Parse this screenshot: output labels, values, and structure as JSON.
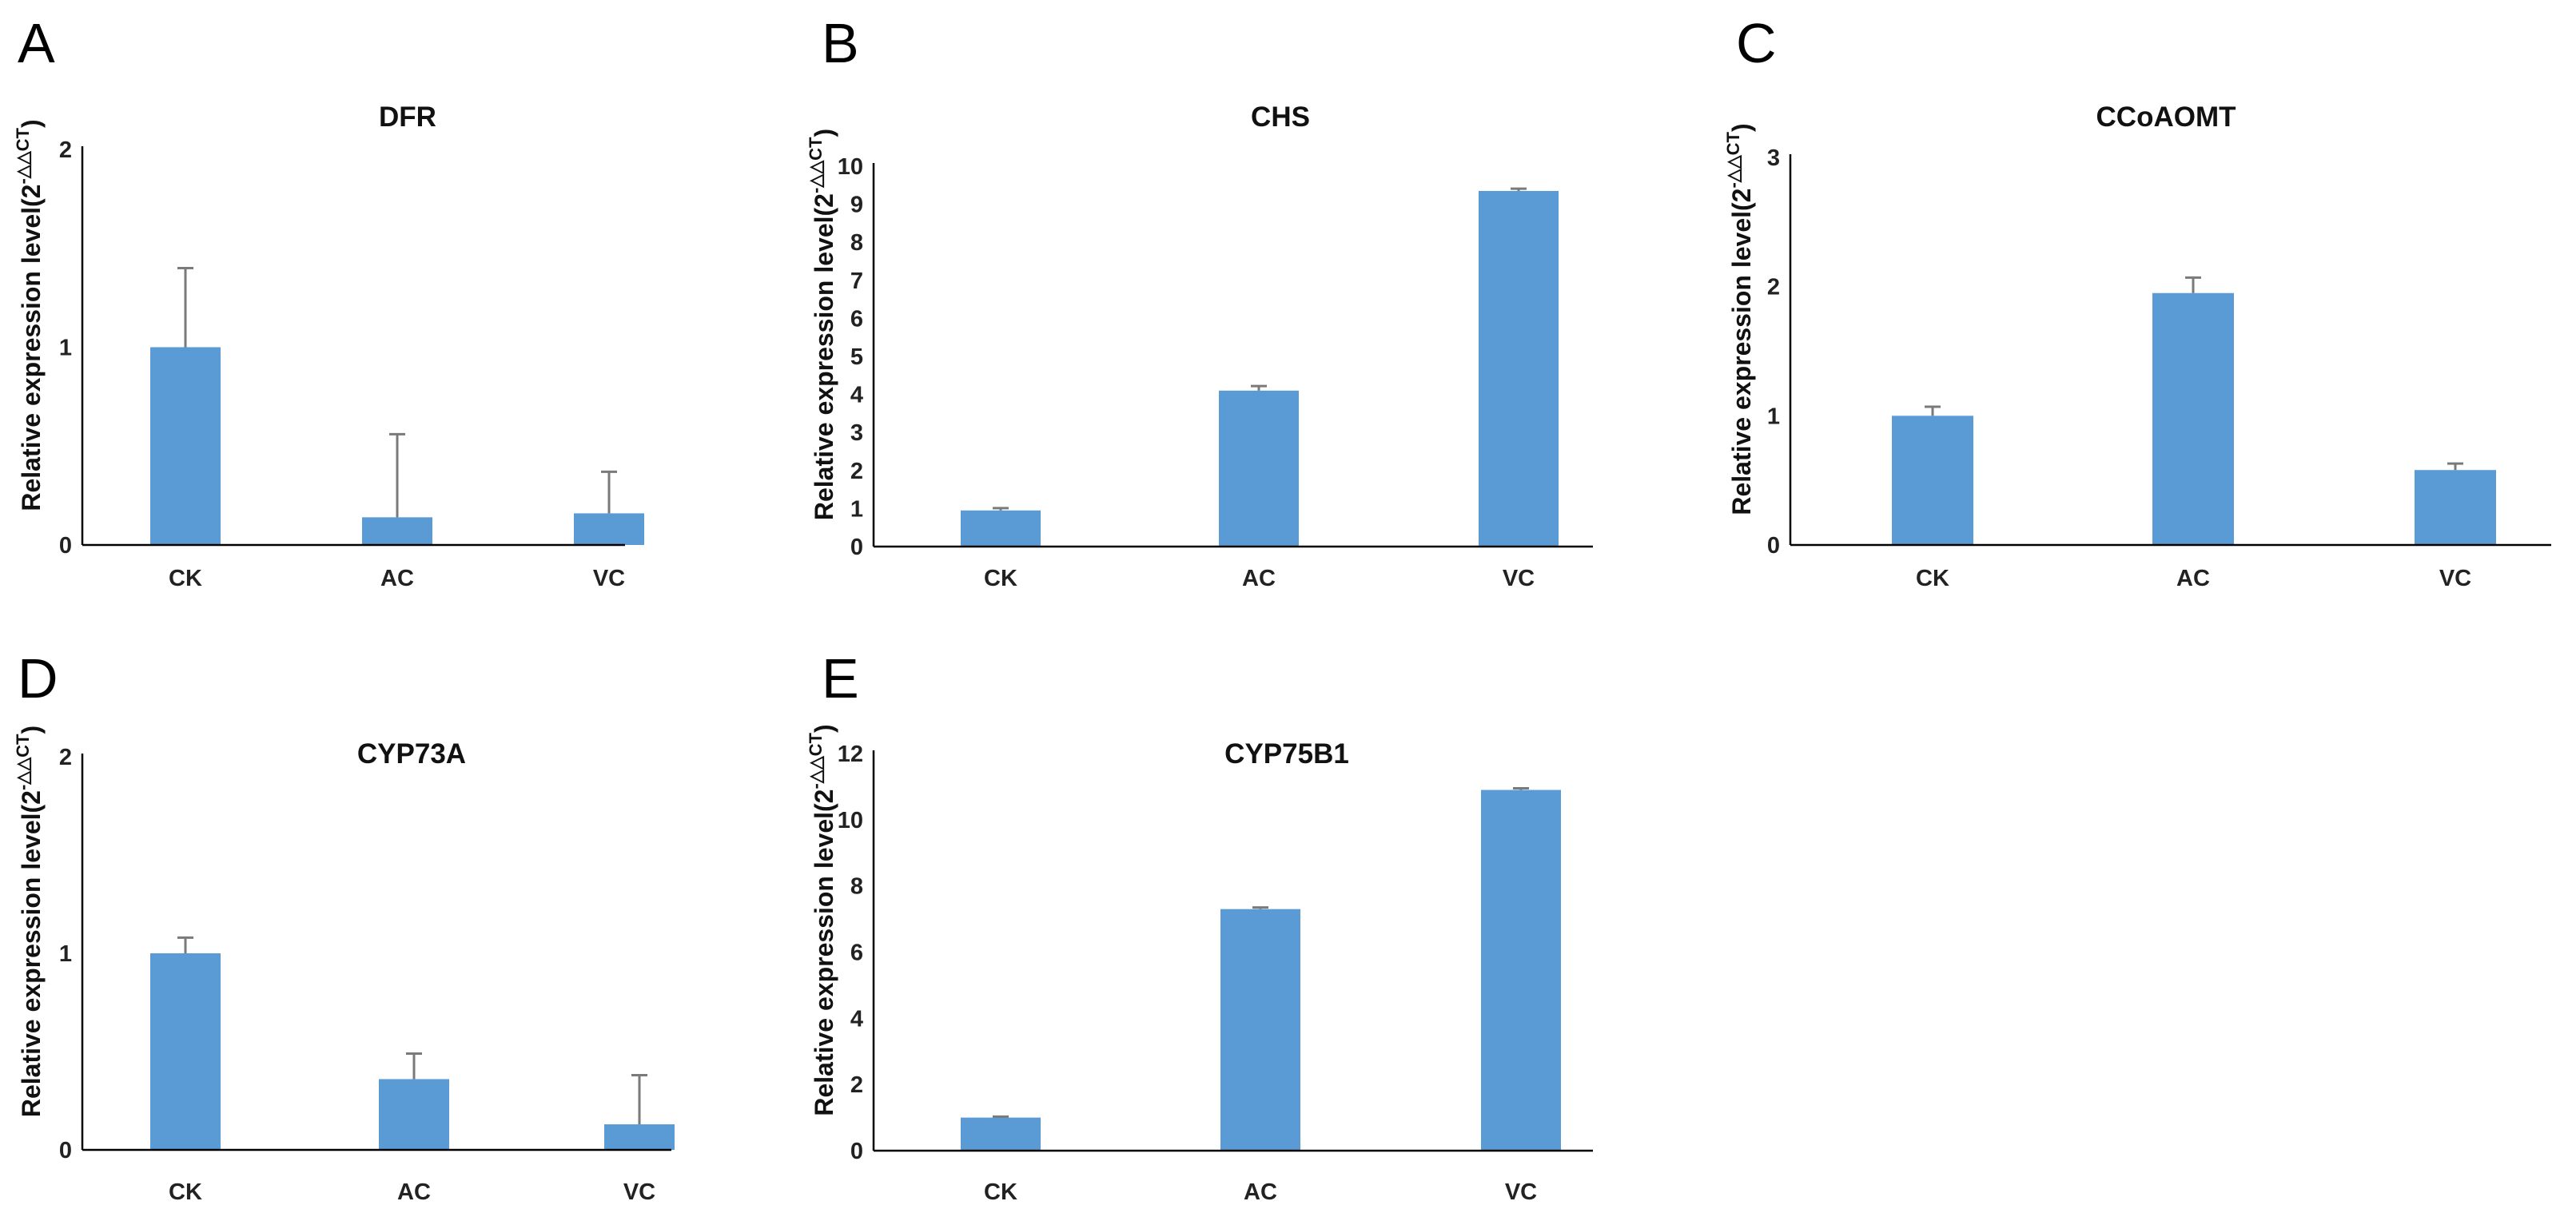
{
  "chart_data": [
    {
      "panel": "A",
      "type": "bar",
      "title": "DFR",
      "ylabel": {
        "main": "Relative expression level(2",
        "sup": "-△△CT",
        "close": ")"
      },
      "categories": [
        "CK",
        "AC",
        "VC"
      ],
      "values": [
        1.0,
        0.14,
        0.16
      ],
      "errors": [
        0.4,
        0.42,
        0.21
      ],
      "ylim": [
        0,
        2
      ],
      "yticks": [
        "0",
        "1",
        "2"
      ],
      "color": "#5b9bd5"
    },
    {
      "panel": "B",
      "type": "bar",
      "title": "CHS",
      "ylabel": {
        "main": "Relative expression level(2",
        "sup": "-△△CT",
        "close": ")"
      },
      "categories": [
        "CK",
        "AC",
        "VC"
      ],
      "values": [
        0.95,
        4.1,
        9.35
      ],
      "errors": [
        0.06,
        0.12,
        0.06
      ],
      "ylim": [
        0,
        10
      ],
      "yticks": [
        "0",
        "1",
        "2",
        "3",
        "4",
        "5",
        "6",
        "7",
        "8",
        "9",
        "10"
      ],
      "color": "#5b9bd5"
    },
    {
      "panel": "C",
      "type": "bar",
      "title": "CCoAOMT",
      "ylabel": {
        "main": "Relative expression level(2",
        "sup": "-△△CT",
        "close": ")"
      },
      "categories": [
        "CK",
        "AC",
        "VC"
      ],
      "values": [
        1.0,
        1.95,
        0.58
      ],
      "errors": [
        0.07,
        0.12,
        0.05
      ],
      "ylim": [
        0,
        3
      ],
      "yticks": [
        "0",
        "1",
        "2",
        "3"
      ],
      "color": "#5b9bd5"
    },
    {
      "panel": "D",
      "type": "bar",
      "title": "CYP73A",
      "ylabel": {
        "main": "Relative expression level(2",
        "sup": "-△△CT",
        "close": ")"
      },
      "categories": [
        "CK",
        "AC",
        "VC"
      ],
      "values": [
        1.0,
        0.36,
        0.13
      ],
      "errors": [
        0.08,
        0.13,
        0.25
      ],
      "ylim": [
        0,
        2
      ],
      "yticks": [
        "0",
        "1",
        "2"
      ],
      "color": "#5b9bd5"
    },
    {
      "panel": "E",
      "type": "bar",
      "title": "CYP75B1",
      "ylabel": {
        "main": "Relative expression level(2",
        "sup": "-△△CT",
        "close": ")"
      },
      "categories": [
        "CK",
        "AC",
        "VC"
      ],
      "values": [
        1.0,
        7.3,
        10.9
      ],
      "errors": [
        0.03,
        0.05,
        0.05
      ],
      "ylim": [
        0,
        12
      ],
      "yticks": [
        "0",
        "2",
        "4",
        "6",
        "8",
        "10",
        "12"
      ],
      "color": "#5b9bd5"
    }
  ]
}
